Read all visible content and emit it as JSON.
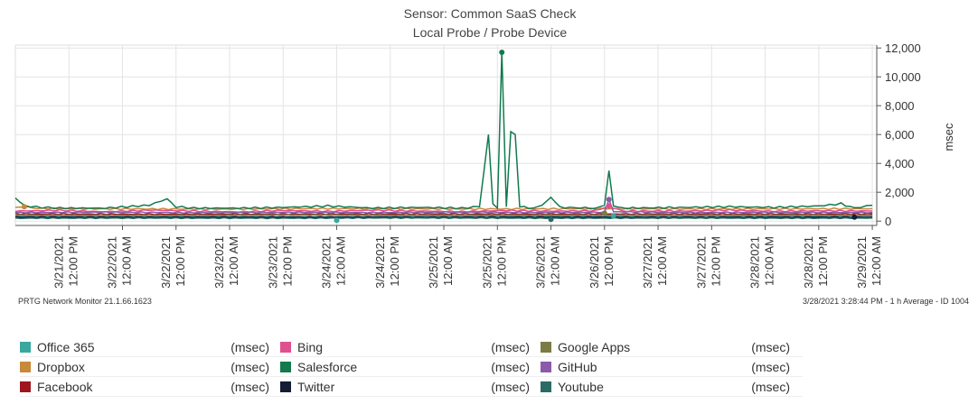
{
  "title": "Sensor: Common SaaS Check",
  "subtitle": "Local Probe / Probe Device",
  "footer_left": "PRTG Network Monitor 21.1.66.1623",
  "footer_right": "3/28/2021 3:28:44 PM - 1 h Average - ID 1004",
  "chart_data": {
    "type": "line",
    "title": "Sensor: Common SaaS Check",
    "subtitle": "Local Probe / Probe Device",
    "ylabel": "msec",
    "ylim": [
      -300,
      12200
    ],
    "yticks": [
      0,
      2000,
      4000,
      6000,
      8000,
      10000,
      12000
    ],
    "ytick_labels": [
      "0",
      "2,000",
      "4,000",
      "6,000",
      "8,000",
      "10,000",
      "12,000"
    ],
    "x_domain_hours": [
      0,
      193
    ],
    "x_ticks": [
      {
        "h": 12,
        "label1": "3/21/2021",
        "label2": "12:00 PM"
      },
      {
        "h": 24,
        "label1": "3/22/2021",
        "label2": "12:00 AM"
      },
      {
        "h": 36,
        "label1": "3/22/2021",
        "label2": "12:00 PM"
      },
      {
        "h": 48,
        "label1": "3/23/2021",
        "label2": "12:00 AM"
      },
      {
        "h": 60,
        "label1": "3/23/2021",
        "label2": "12:00 PM"
      },
      {
        "h": 72,
        "label1": "3/24/2021",
        "label2": "12:00 AM"
      },
      {
        "h": 84,
        "label1": "3/24/2021",
        "label2": "12:00 PM"
      },
      {
        "h": 96,
        "label1": "3/25/2021",
        "label2": "12:00 AM"
      },
      {
        "h": 108,
        "label1": "3/25/2021",
        "label2": "12:00 PM"
      },
      {
        "h": 120,
        "label1": "3/26/2021",
        "label2": "12:00 AM"
      },
      {
        "h": 132,
        "label1": "3/26/2021",
        "label2": "12:00 PM"
      },
      {
        "h": 144,
        "label1": "3/27/2021",
        "label2": "12:00 AM"
      },
      {
        "h": 156,
        "label1": "3/27/2021",
        "label2": "12:00 PM"
      },
      {
        "h": 168,
        "label1": "3/28/2021",
        "label2": "12:00 AM"
      },
      {
        "h": 180,
        "label1": "3/28/2021",
        "label2": "12:00 PM"
      },
      {
        "h": 192,
        "label1": "3/29/2021",
        "label2": "12:00 AM"
      }
    ],
    "grid": true,
    "legend_position": "bottom",
    "series": [
      {
        "name": "Office 365",
        "unit": "(msec)",
        "color": "#3aa89e",
        "points": [
          [
            0,
            350
          ],
          [
            40,
            330
          ],
          [
            70,
            300
          ],
          [
            100,
            360
          ],
          [
            120,
            340
          ],
          [
            135,
            330
          ],
          [
            150,
            360
          ],
          [
            180,
            340
          ],
          [
            192,
            350
          ]
        ]
      },
      {
        "name": "Dropbox",
        "unit": "(msec)",
        "color": "#c8893a",
        "points": [
          [
            0,
            950
          ],
          [
            2,
            1000
          ],
          [
            5,
            880
          ],
          [
            20,
            850
          ],
          [
            45,
            830
          ],
          [
            70,
            870
          ],
          [
            90,
            850
          ],
          [
            110,
            840
          ],
          [
            130,
            860
          ],
          [
            150,
            840
          ],
          [
            170,
            850
          ],
          [
            192,
            860
          ]
        ]
      },
      {
        "name": "Facebook",
        "unit": "(msec)",
        "color": "#9e1620",
        "points": [
          [
            0,
            500
          ],
          [
            30,
            480
          ],
          [
            60,
            490
          ],
          [
            90,
            500
          ],
          [
            120,
            490
          ],
          [
            150,
            500
          ],
          [
            180,
            490
          ],
          [
            192,
            500
          ]
        ]
      },
      {
        "name": "Bing",
        "unit": "(msec)",
        "color": "#e0508e",
        "points": [
          [
            0,
            700
          ],
          [
            10,
            750
          ],
          [
            20,
            650
          ],
          [
            30,
            760
          ],
          [
            40,
            700
          ],
          [
            50,
            640
          ],
          [
            60,
            740
          ],
          [
            70,
            680
          ],
          [
            80,
            760
          ],
          [
            90,
            700
          ],
          [
            100,
            660
          ],
          [
            110,
            740
          ],
          [
            120,
            690
          ],
          [
            130,
            720
          ],
          [
            133,
            1050
          ],
          [
            136,
            700
          ],
          [
            150,
            700
          ],
          [
            160,
            760
          ],
          [
            170,
            680
          ],
          [
            180,
            720
          ],
          [
            192,
            700
          ]
        ]
      },
      {
        "name": "Salesforce",
        "unit": "(msec)",
        "color": "#127a4e",
        "points": [
          [
            0,
            1600
          ],
          [
            2,
            1050
          ],
          [
            6,
            950
          ],
          [
            10,
            900
          ],
          [
            20,
            900
          ],
          [
            25,
            1000
          ],
          [
            30,
            1100
          ],
          [
            34,
            1550
          ],
          [
            36,
            1000
          ],
          [
            40,
            900
          ],
          [
            50,
            900
          ],
          [
            60,
            950
          ],
          [
            70,
            1050
          ],
          [
            80,
            900
          ],
          [
            90,
            950
          ],
          [
            100,
            900
          ],
          [
            104,
            1000
          ],
          [
            106,
            6000
          ],
          [
            107,
            1200
          ],
          [
            108,
            900
          ],
          [
            109,
            11700
          ],
          [
            110,
            1000
          ],
          [
            111,
            6200
          ],
          [
            112,
            6000
          ],
          [
            113,
            1000
          ],
          [
            116,
            900
          ],
          [
            118,
            1100
          ],
          [
            120,
            1650
          ],
          [
            122,
            950
          ],
          [
            130,
            900
          ],
          [
            132,
            1100
          ],
          [
            133,
            3500
          ],
          [
            134,
            1050
          ],
          [
            136,
            900
          ],
          [
            150,
            950
          ],
          [
            160,
            1000
          ],
          [
            170,
            950
          ],
          [
            180,
            1050
          ],
          [
            185,
            1200
          ],
          [
            188,
            900
          ],
          [
            192,
            1100
          ]
        ]
      },
      {
        "name": "Twitter",
        "unit": "(msec)",
        "color": "#151c36",
        "points": [
          [
            0,
            280
          ],
          [
            30,
            270
          ],
          [
            60,
            280
          ],
          [
            90,
            270
          ],
          [
            120,
            280
          ],
          [
            150,
            270
          ],
          [
            180,
            280
          ],
          [
            192,
            270
          ]
        ]
      },
      {
        "name": "Google Apps",
        "unit": "(msec)",
        "color": "#7b7b45",
        "points": [
          [
            0,
            420
          ],
          [
            30,
            400
          ],
          [
            60,
            430
          ],
          [
            90,
            410
          ],
          [
            120,
            420
          ],
          [
            150,
            410
          ],
          [
            180,
            420
          ],
          [
            192,
            410
          ]
        ]
      },
      {
        "name": "GitHub",
        "unit": "(msec)",
        "color": "#8a5ba8",
        "points": [
          [
            0,
            600
          ],
          [
            20,
            620
          ],
          [
            40,
            590
          ],
          [
            60,
            610
          ],
          [
            80,
            600
          ],
          [
            100,
            620
          ],
          [
            120,
            600
          ],
          [
            132,
            620
          ],
          [
            133,
            1500
          ],
          [
            134,
            650
          ],
          [
            150,
            600
          ],
          [
            170,
            610
          ],
          [
            192,
            600
          ]
        ]
      },
      {
        "name": "Youtube",
        "unit": "(msec)",
        "color": "#2a6b63",
        "points": [
          [
            0,
            200
          ],
          [
            30,
            210
          ],
          [
            60,
            200
          ],
          [
            90,
            220
          ],
          [
            120,
            200
          ],
          [
            150,
            210
          ],
          [
            180,
            200
          ],
          [
            192,
            210
          ]
        ]
      }
    ],
    "markers": [
      {
        "series": "Salesforce",
        "h": 109,
        "v": 11700
      },
      {
        "series": "Dropbox",
        "h": 2,
        "v": 1000
      },
      {
        "series": "Bing",
        "h": 133,
        "v": 1050
      },
      {
        "series": "GitHub",
        "h": 133,
        "v": 1500
      },
      {
        "series": "Office 365",
        "h": 72,
        "v": 50
      },
      {
        "series": "Office 365",
        "h": 134,
        "v": 380
      },
      {
        "series": "Google Apps",
        "h": 132,
        "v": 550
      },
      {
        "series": "Youtube",
        "h": 120,
        "v": 120
      },
      {
        "series": "Twitter",
        "h": 188,
        "v": 280
      }
    ]
  }
}
